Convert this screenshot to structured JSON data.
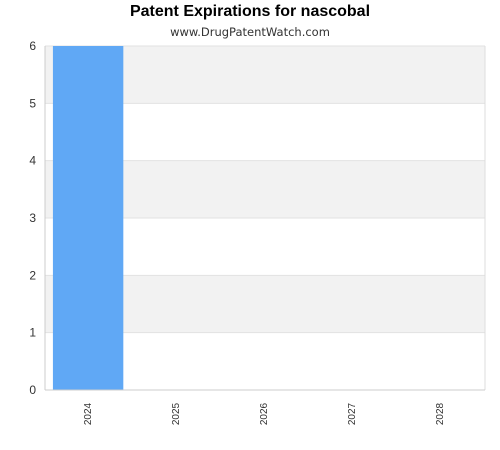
{
  "chart_data": {
    "type": "bar",
    "title": "Patent Expirations for nascobal",
    "subtitle": "www.DrugPatentWatch.com",
    "xlabel": "",
    "ylabel": "",
    "categories": [
      "2024",
      "2025",
      "2026",
      "2027",
      "2028"
    ],
    "values": [
      6,
      0,
      0,
      0,
      0
    ],
    "ylim": [
      0,
      6
    ],
    "yticks": [
      "0",
      "1",
      "2",
      "3",
      "4",
      "5",
      "6"
    ],
    "grid": true,
    "bar_color": "#60a8f5",
    "band_color": "#f2f2f2"
  }
}
